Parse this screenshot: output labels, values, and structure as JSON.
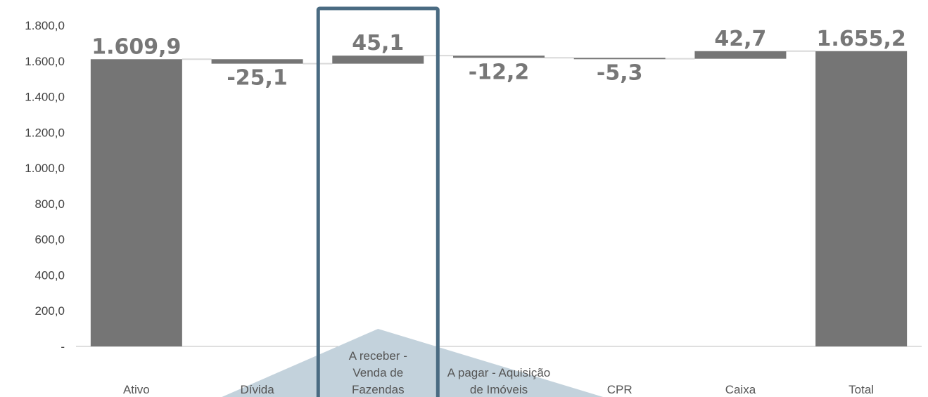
{
  "chart_data": {
    "type": "bar",
    "subtype": "waterfall",
    "categories": [
      "Ativo",
      "Dívida",
      "A receber - Venda de Fazendas",
      "A pagar - Aquisição de Imóveis",
      "CPR",
      "Caixa",
      "Total"
    ],
    "category_labels": [
      [
        "Ativo"
      ],
      [
        "Dívida"
      ],
      [
        "A receber -",
        "Venda de",
        "Fazendas"
      ],
      [
        "A pagar - Aquisição",
        "de Imóveis"
      ],
      [
        "CPR"
      ],
      [
        "Caixa"
      ],
      [
        "Total"
      ]
    ],
    "values": [
      1609.9,
      -25.1,
      45.1,
      -12.2,
      -5.3,
      42.7,
      1655.2
    ],
    "is_total": [
      true,
      false,
      false,
      false,
      false,
      false,
      true
    ],
    "data_labels": [
      "1.609,9",
      "-25,1",
      "45,1",
      "-12,2",
      "-5,3",
      "42,7",
      "1.655,2"
    ],
    "ylim": [
      0,
      1800
    ],
    "yticks": [
      0,
      200,
      400,
      600,
      800,
      1000,
      1200,
      1400,
      1600,
      1800
    ],
    "ytick_labels": [
      "-",
      "200,0",
      "400,0",
      "600,0",
      "800,0",
      "1.000,0",
      "1.200,0",
      "1.400,0",
      "1.600,0",
      "1.800,0"
    ],
    "title": "",
    "xlabel": "",
    "ylabel": "",
    "grid": false,
    "highlighted_category": "A receber - Venda de Fazendas"
  },
  "colors": {
    "bar": "#757575",
    "highlight_border": "#4a6b82",
    "callout": "#c3d2dc",
    "connector": "#d9d9d9",
    "axis": "#bfbfbf"
  }
}
